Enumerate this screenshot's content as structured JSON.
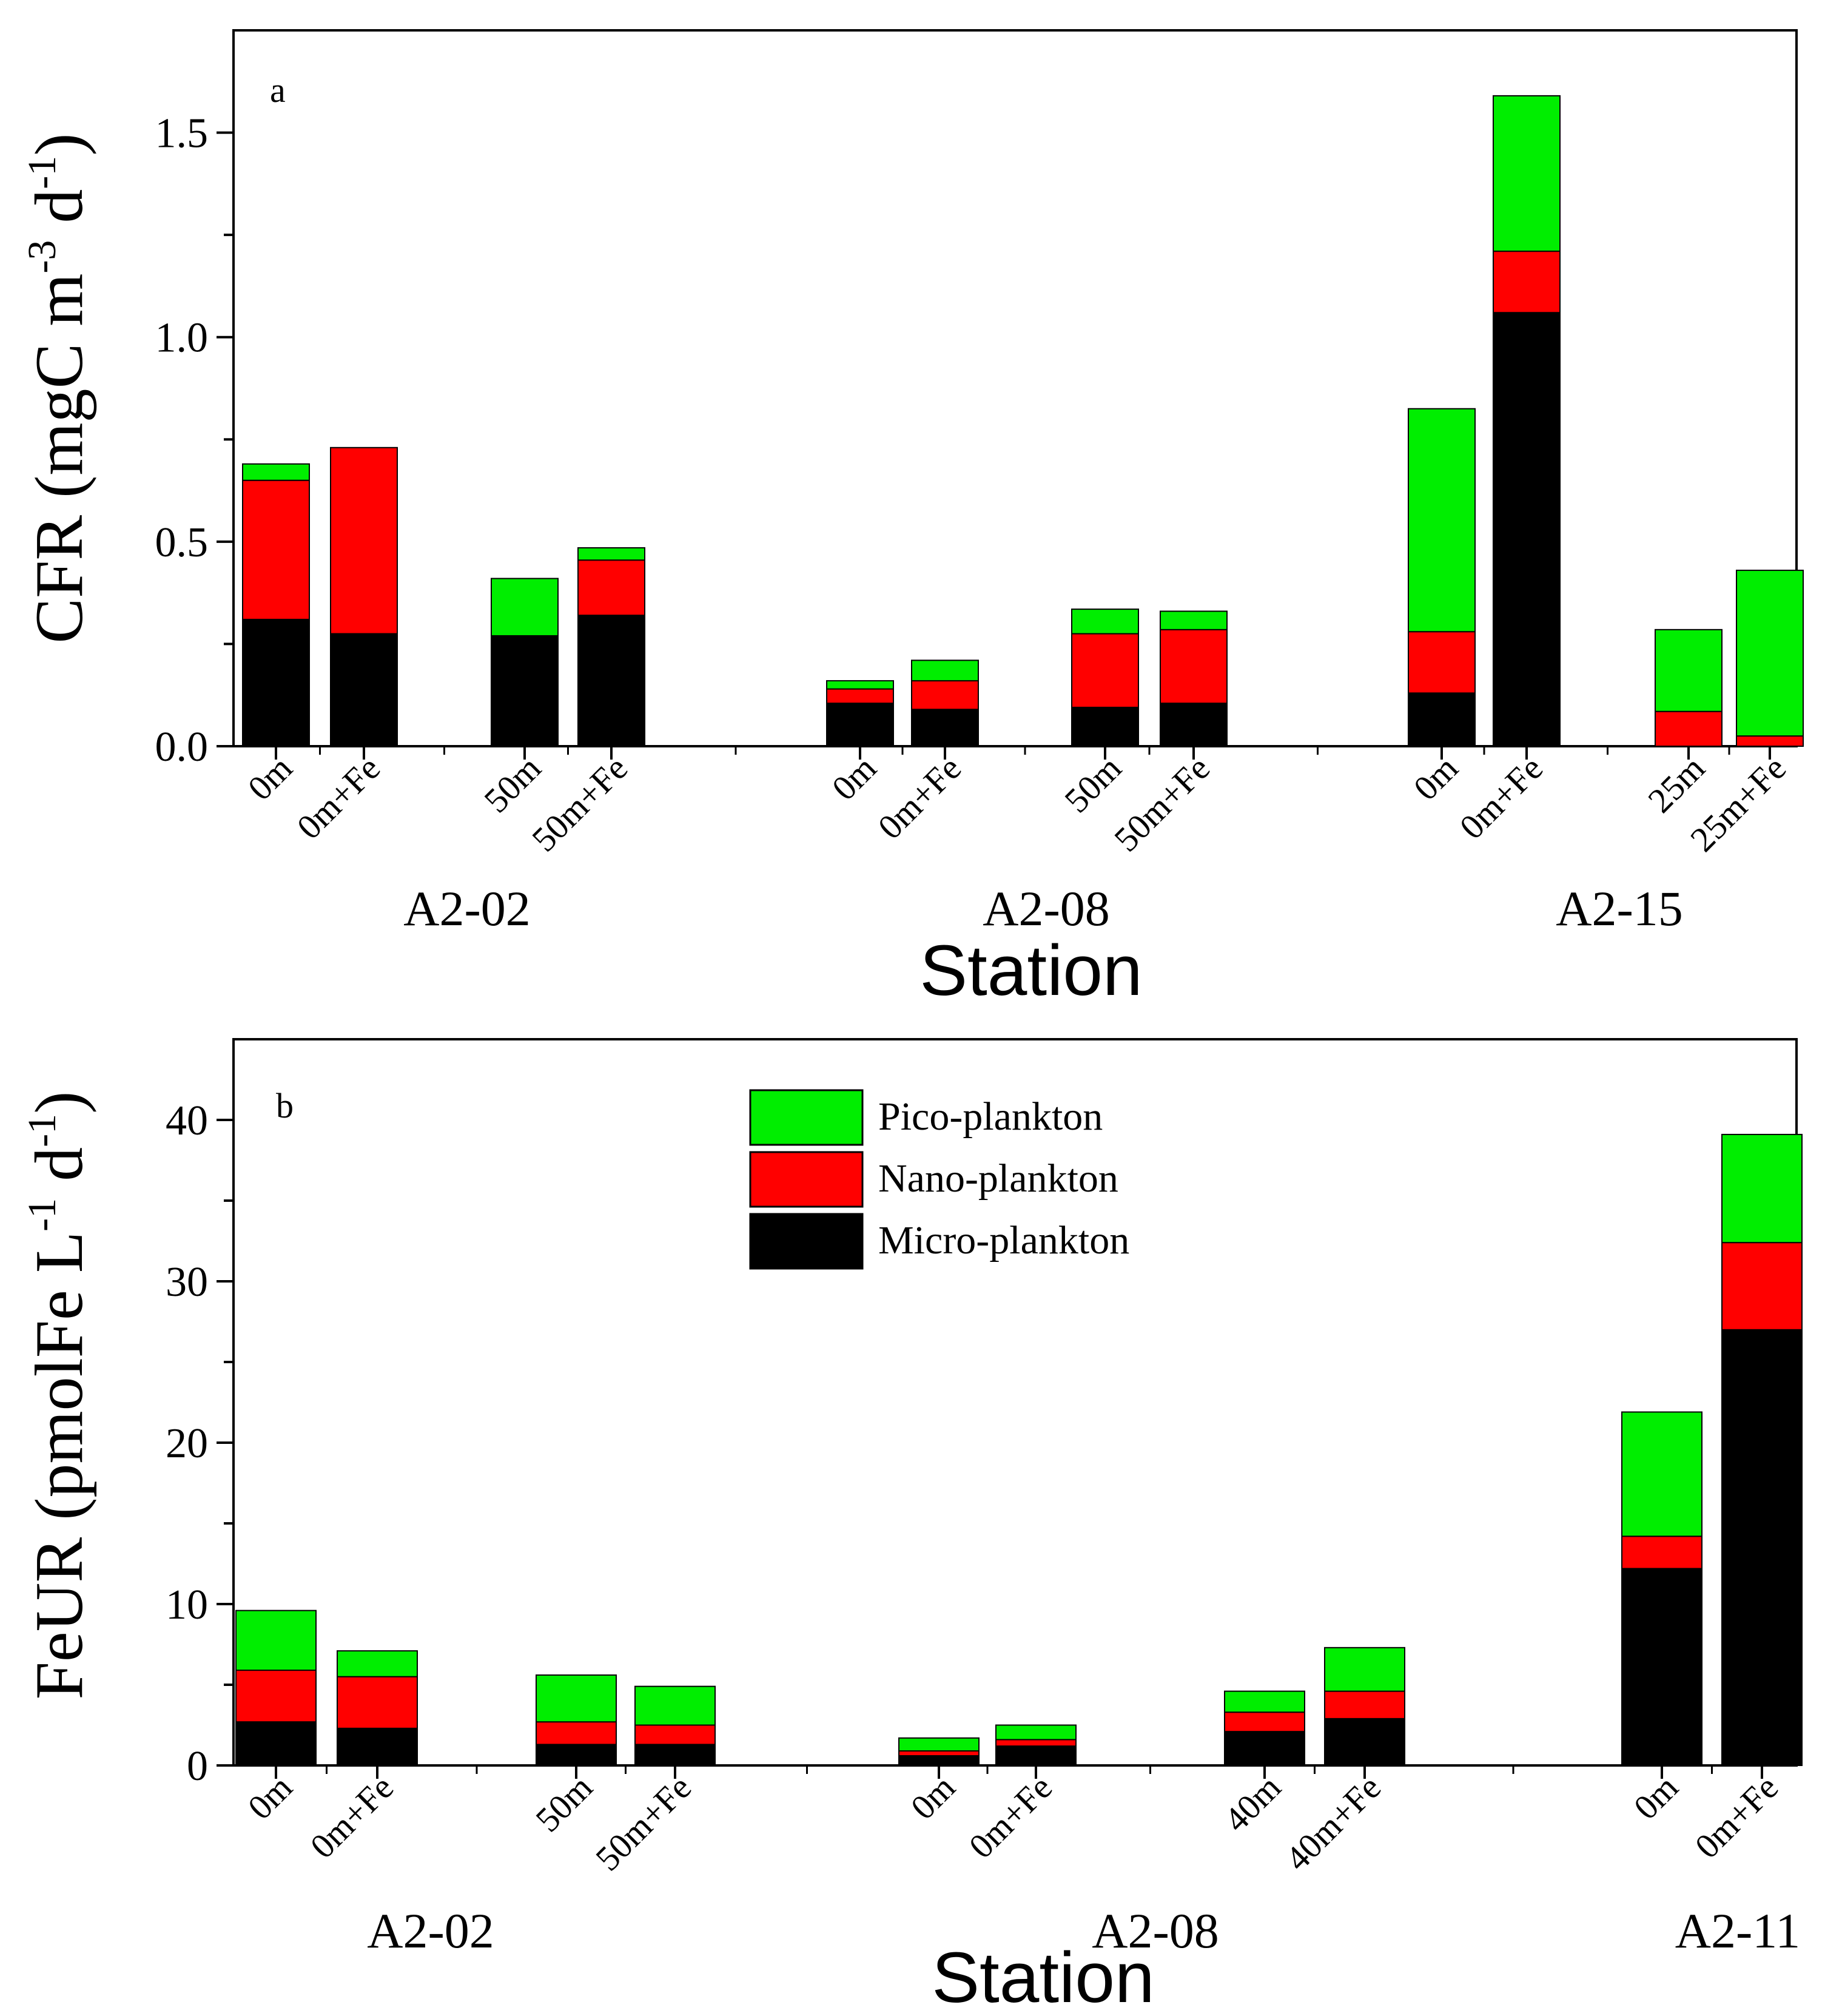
{
  "chart_data": [
    {
      "type": "bar",
      "stacked": true,
      "panel_label": "a",
      "ylabel": "CFR (mgC m-3 d-1)",
      "ylabel_parts": [
        "CFR (mgC m",
        "-3",
        " d",
        "-1",
        ")"
      ],
      "xlabel": "Station",
      "ylim": [
        0,
        1.75
      ],
      "yticks": [
        "0.0",
        "0.5",
        "1.0",
        "1.5"
      ],
      "ytick_values": [
        0,
        0.5,
        1.0,
        1.5
      ],
      "groups": [
        "A2-02",
        "A2-08",
        "A2-15"
      ],
      "categories": [
        "0m",
        "0m+Fe",
        "50m",
        "50m+Fe",
        "0m",
        "0m+Fe",
        "50m",
        "50m+Fe",
        "0m",
        "0m+Fe",
        "25m",
        "25m+Fe"
      ],
      "category_group": [
        0,
        0,
        0,
        0,
        1,
        1,
        1,
        1,
        2,
        2,
        2,
        2
      ],
      "series": [
        {
          "name": "Micro-plankton",
          "color": "#000000",
          "values": [
            0.31,
            0.275,
            0.27,
            0.32,
            0.105,
            0.09,
            0.095,
            0.105,
            0.13,
            1.06,
            0.0,
            0.0
          ]
        },
        {
          "name": "Nano-plankton",
          "color": "#ff0000",
          "values": [
            0.34,
            0.455,
            0.0,
            0.135,
            0.035,
            0.07,
            0.18,
            0.18,
            0.15,
            0.15,
            0.085,
            0.025
          ]
        },
        {
          "name": "Pico-plankton",
          "color": "#00ee00",
          "values": [
            0.04,
            0.0,
            0.14,
            0.03,
            0.02,
            0.05,
            0.06,
            0.045,
            0.545,
            0.38,
            0.2,
            0.405
          ]
        }
      ]
    },
    {
      "type": "bar",
      "stacked": true,
      "panel_label": "b",
      "ylabel": "FeUR (pmolFe L-1 d-1)",
      "ylabel_parts": [
        "FeUR (pmolFe L",
        "-1",
        " d",
        "-1",
        ")"
      ],
      "xlabel": "Station",
      "ylim": [
        0,
        45
      ],
      "yticks": [
        "0",
        "10",
        "20",
        "30",
        "40"
      ],
      "ytick_values": [
        0,
        10,
        20,
        30,
        40
      ],
      "groups": [
        "A2-02",
        "A2-08",
        "A2-11"
      ],
      "categories": [
        "0m",
        "0m+Fe",
        "50m",
        "50m+Fe",
        "0m",
        "0m+Fe",
        "40m",
        "40m+Fe",
        "0m",
        "0m+Fe"
      ],
      "category_group": [
        0,
        0,
        0,
        0,
        1,
        1,
        1,
        1,
        2,
        2
      ],
      "series": [
        {
          "name": "Micro-plankton",
          "color": "#000000",
          "values": [
            2.7,
            2.3,
            1.3,
            1.3,
            0.6,
            1.2,
            2.1,
            2.9,
            12.2,
            27.0
          ]
        },
        {
          "name": "Nano-plankton",
          "color": "#ff0000",
          "values": [
            3.2,
            3.2,
            1.4,
            1.2,
            0.3,
            0.4,
            1.2,
            1.7,
            2.0,
            5.4
          ]
        },
        {
          "name": "Pico-plankton",
          "color": "#00ee00",
          "values": [
            3.7,
            1.6,
            2.9,
            2.4,
            0.8,
            0.9,
            1.3,
            2.7,
            7.7,
            6.7
          ]
        }
      ]
    }
  ]
}
